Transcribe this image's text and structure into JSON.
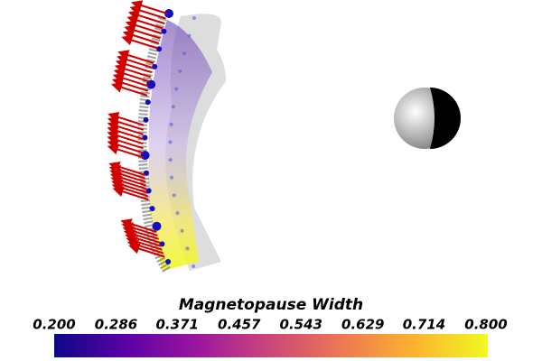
{
  "colorbar": {
    "title": "Magnetopause Width",
    "lim": [
      0.2,
      0.8
    ],
    "ticks": [
      {
        "value": 0.2,
        "label": "0.200"
      },
      {
        "value": 0.286,
        "label": "0.286"
      },
      {
        "value": 0.371,
        "label": "0.371"
      },
      {
        "value": 0.457,
        "label": "0.457"
      },
      {
        "value": 0.543,
        "label": "0.543"
      },
      {
        "value": 0.629,
        "label": "0.629"
      },
      {
        "value": 0.714,
        "label": "0.714"
      },
      {
        "value": 0.8,
        "label": "0.800"
      }
    ],
    "colors": [
      "#0d0887",
      "#5c01a6",
      "#9c179e",
      "#cc4778",
      "#ed7953",
      "#fdb42f",
      "#f0f921"
    ]
  }
}
